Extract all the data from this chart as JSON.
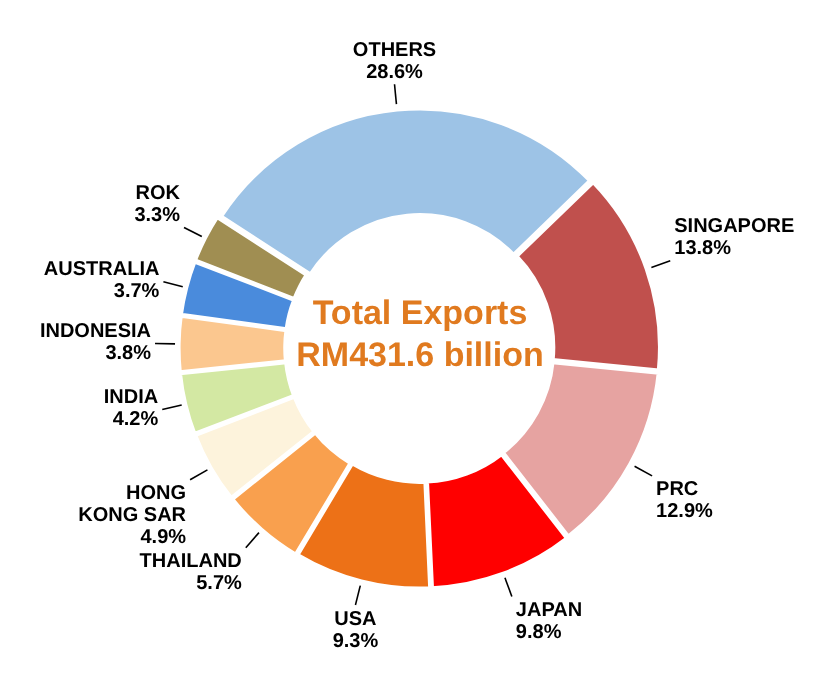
{
  "chart_data": {
    "type": "donut",
    "title": "Total Exports RM431.6 billion",
    "categories": [
      "OTHERS",
      "SINGAPORE",
      "PRC",
      "JAPAN",
      "USA",
      "THAILAND",
      "HONG KONG SAR",
      "INDIA",
      "INDONESIA",
      "AUSTRALIA",
      "ROK"
    ],
    "values": [
      28.6,
      13.8,
      12.9,
      9.8,
      9.3,
      5.7,
      4.9,
      4.2,
      3.8,
      3.7,
      3.3
    ],
    "colors": [
      "#9dc3e6",
      "#c0504d",
      "#e6a3a1",
      "#ff0000",
      "#ed7117",
      "#f9a04e",
      "#fdf3dc",
      "#d3e8a3",
      "#fbc78f",
      "#4a8bdc",
      "#a08e52"
    ],
    "value_labels": [
      "28.6%",
      "13.8%",
      "12.9%",
      "9.8%",
      "9.3%",
      "5.7%",
      "4.9%",
      "4.2%",
      "3.8%",
      "3.7%",
      "3.3%"
    ],
    "legend": false
  }
}
